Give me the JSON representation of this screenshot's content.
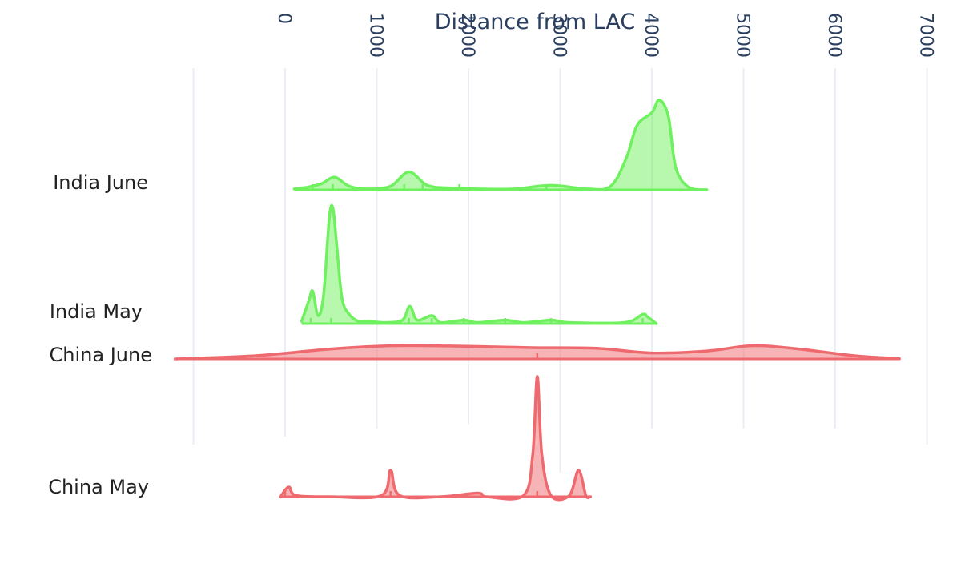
{
  "chart_data": {
    "type": "violin",
    "orientation": "horizontal",
    "side": "positive",
    "x_axis_title": "Distance from LAC",
    "x_axis_side": "top",
    "x_ticks": [
      0,
      1000,
      2000,
      3000,
      4000,
      5000,
      6000,
      7000
    ],
    "x_range": [
      -1000,
      7000
    ],
    "grid": true,
    "colors": {
      "india": "#6ff05e",
      "china": "#ef6a6f"
    },
    "series": [
      {
        "name": "India June",
        "color": "#6ff05e",
        "x_extent": [
          100,
          4600
        ],
        "peak_height": 0.95,
        "density": [
          [
            100,
            0.01
          ],
          [
            250,
            0.03
          ],
          [
            400,
            0.07
          ],
          [
            540,
            0.14
          ],
          [
            700,
            0.04
          ],
          [
            900,
            0.01
          ],
          [
            1150,
            0.04
          ],
          [
            1350,
            0.2
          ],
          [
            1550,
            0.05
          ],
          [
            1800,
            0.02
          ],
          [
            2100,
            0.01
          ],
          [
            2500,
            0.01
          ],
          [
            2900,
            0.05
          ],
          [
            3300,
            0.01
          ],
          [
            3550,
            0.04
          ],
          [
            3720,
            0.35
          ],
          [
            3840,
            0.72
          ],
          [
            4000,
            0.86
          ],
          [
            4080,
            1.0
          ],
          [
            4180,
            0.82
          ],
          [
            4260,
            0.25
          ],
          [
            4400,
            0.03
          ],
          [
            4600,
            0.0
          ]
        ],
        "rug": [
          300,
          520,
          1300,
          1500,
          1900,
          2850
        ]
      },
      {
        "name": "India May",
        "color": "#6ff05e",
        "x_extent": [
          180,
          4050
        ],
        "peak_height": 1.0,
        "density": [
          [
            180,
            0.02
          ],
          [
            260,
            0.2
          ],
          [
            300,
            0.28
          ],
          [
            360,
            0.07
          ],
          [
            420,
            0.25
          ],
          [
            480,
            0.9
          ],
          [
            520,
            1.0
          ],
          [
            560,
            0.7
          ],
          [
            620,
            0.22
          ],
          [
            700,
            0.08
          ],
          [
            800,
            0.02
          ],
          [
            900,
            0.02
          ],
          [
            1100,
            0.01
          ],
          [
            1280,
            0.03
          ],
          [
            1360,
            0.15
          ],
          [
            1440,
            0.03
          ],
          [
            1600,
            0.07
          ],
          [
            1700,
            0.01
          ],
          [
            1950,
            0.03
          ],
          [
            2100,
            0.01
          ],
          [
            2400,
            0.03
          ],
          [
            2600,
            0.01
          ],
          [
            2900,
            0.03
          ],
          [
            3100,
            0.01
          ],
          [
            3700,
            0.01
          ],
          [
            3900,
            0.08
          ],
          [
            3950,
            0.06
          ],
          [
            4050,
            0.0
          ]
        ],
        "rug": [
          280,
          500,
          1350,
          1600,
          1950,
          2400,
          2900,
          3900
        ]
      },
      {
        "name": "China June",
        "color": "#ef6a6f",
        "x_extent": [
          -1200,
          6700
        ],
        "peak_height": 0.14,
        "density": [
          [
            -1200,
            0.0
          ],
          [
            -300,
            0.25
          ],
          [
            500,
            0.75
          ],
          [
            1200,
            1.0
          ],
          [
            2000,
            0.95
          ],
          [
            2700,
            0.85
          ],
          [
            3400,
            0.8
          ],
          [
            4000,
            0.45
          ],
          [
            4600,
            0.6
          ],
          [
            5100,
            1.0
          ],
          [
            5600,
            0.75
          ],
          [
            6200,
            0.25
          ],
          [
            6700,
            0.02
          ]
        ],
        "rug": [
          2750
        ]
      },
      {
        "name": "China May",
        "color": "#ef6a6f",
        "x_extent": [
          -50,
          3330
        ],
        "peak_height": 1.0,
        "density": [
          [
            -50,
            0.0
          ],
          [
            40,
            0.08
          ],
          [
            120,
            0.01
          ],
          [
            500,
            0.0
          ],
          [
            1050,
            0.01
          ],
          [
            1150,
            0.22
          ],
          [
            1250,
            0.01
          ],
          [
            1700,
            0.0
          ],
          [
            2100,
            0.03
          ],
          [
            2200,
            0.0
          ],
          [
            2600,
            0.01
          ],
          [
            2700,
            0.35
          ],
          [
            2750,
            1.0
          ],
          [
            2800,
            0.35
          ],
          [
            2900,
            0.01
          ],
          [
            3100,
            0.01
          ],
          [
            3200,
            0.22
          ],
          [
            3280,
            0.01
          ],
          [
            3330,
            0.0
          ]
        ],
        "rug": [
          0,
          1150,
          2750
        ]
      }
    ]
  }
}
